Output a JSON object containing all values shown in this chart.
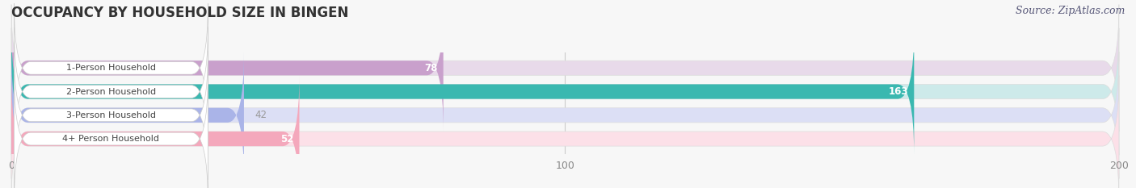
{
  "title": "OCCUPANCY BY HOUSEHOLD SIZE IN BINGEN",
  "source": "Source: ZipAtlas.com",
  "categories": [
    "1-Person Household",
    "2-Person Household",
    "3-Person Household",
    "4+ Person Household"
  ],
  "values": [
    78,
    163,
    42,
    52
  ],
  "bar_colors": [
    "#c9a0cc",
    "#3ab8b0",
    "#aab4e8",
    "#f4a8bc"
  ],
  "bar_bg_colors": [
    "#e8daea",
    "#cdeaea",
    "#dcdff5",
    "#fce0e8"
  ],
  "xlim": [
    0,
    200
  ],
  "xticks": [
    0,
    100,
    200
  ],
  "title_fontsize": 12,
  "source_fontsize": 9,
  "background_color": "#f7f7f7",
  "label_bg_color": "#ffffff",
  "bar_height": 0.62,
  "label_value_outside_color": "#999999",
  "label_value_inside_color": "#ffffff"
}
